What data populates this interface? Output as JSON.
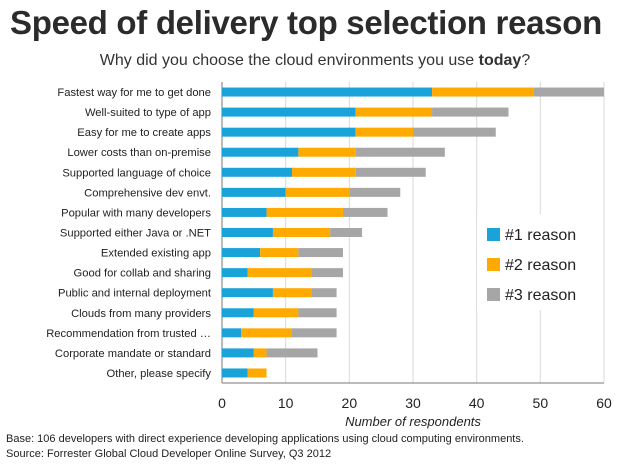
{
  "header": {
    "title": "Speed of delivery top selection reason",
    "subtitle_prefix": "Why did you choose the cloud environments you use ",
    "subtitle_emphasis": "today",
    "subtitle_suffix": "?"
  },
  "chart_data": {
    "type": "bar",
    "orientation": "horizontal",
    "stacked": true,
    "categories": [
      "Fastest way for me to get done",
      "Well-suited to  type of app",
      "Easy for me to create apps",
      "Lower costs than on-premise",
      "Supported language of choice",
      "Comprehensive dev envt.",
      "Popular with many developers",
      "Supported either Java or .NET",
      "Extended existing app",
      "Good for collab and sharing",
      "Public and internal deployment",
      "Clouds from many providers",
      "Recommendation from trusted …",
      "Corporate mandate or standard",
      "Other, please specify"
    ],
    "series": [
      {
        "name": "#1 reason",
        "color": "#1aa3d9",
        "values": [
          33,
          21,
          21,
          12,
          11,
          10,
          7,
          8,
          6,
          4,
          8,
          5,
          3,
          5,
          4
        ]
      },
      {
        "name": "#2 reason",
        "color": "#ffaa00",
        "values": [
          16,
          12,
          9,
          9,
          10,
          10,
          12,
          9,
          6,
          10,
          6,
          7,
          8,
          2,
          3
        ]
      },
      {
        "name": "#3 reason",
        "color": "#a6a6a6",
        "values": [
          11,
          12,
          13,
          14,
          11,
          8,
          7,
          5,
          7,
          5,
          4,
          6,
          7,
          8,
          0
        ]
      }
    ],
    "xlim": [
      0,
      60
    ],
    "xticks": [
      0,
      10,
      20,
      30,
      40,
      50,
      60
    ],
    "xlabel": "Number of respondents",
    "ylabel": "",
    "legend_position": "right-center"
  },
  "footnote": {
    "base": "Base: 106 developers with direct experience developing applications using cloud computing environments.",
    "source": "Source: Forrester Global Cloud Developer Online Survey, Q3 2012"
  }
}
